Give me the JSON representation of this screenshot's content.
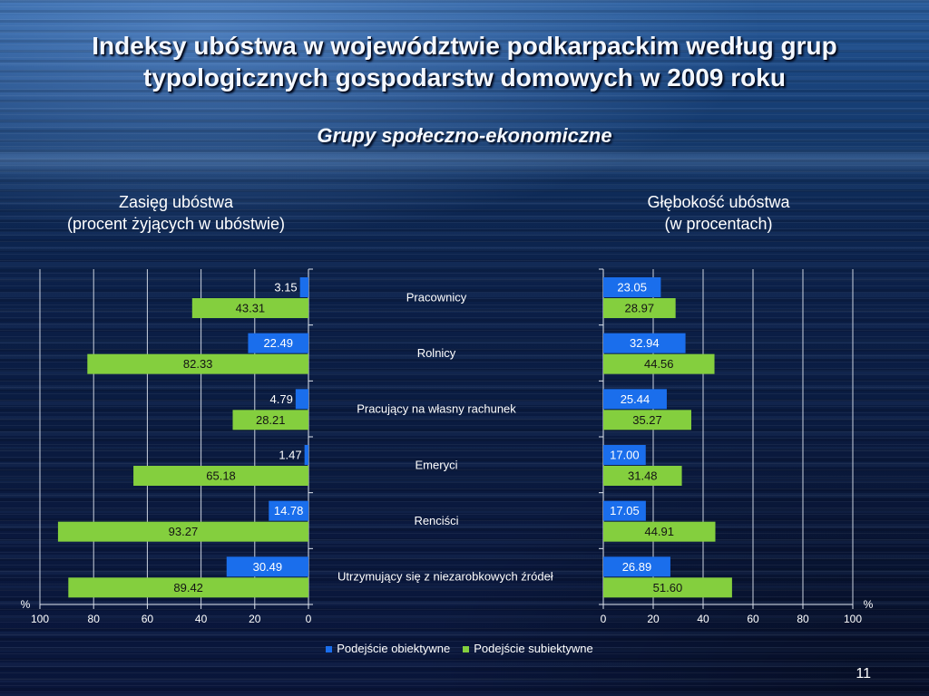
{
  "slide": {
    "title_line1": "Indeksy ubóstwa w województwie podkarpackim według grup",
    "title_line2": "typologicznych gospodarstw domowych w 2009 roku",
    "subtitle": "Grupy społeczno-ekonomiczne",
    "page_number": "11"
  },
  "colors": {
    "objective": "#1a6eec",
    "subjective": "#84cf3e"
  },
  "chart_data": [
    {
      "type": "bar",
      "orientation": "horizontal",
      "x_axis_direction": "reversed",
      "title": "Zasięg ubóstwa",
      "subtitle": "(procent żyjących w ubóstwie)",
      "unit": "%",
      "xlim": [
        0,
        100
      ],
      "x_ticks": [
        100,
        80,
        60,
        40,
        20,
        0
      ],
      "grid": true,
      "legend_position": "bottom",
      "categories": [
        "Pracownicy",
        "Rolnicy",
        "Pracujący na własny rachunek",
        "Emeryci",
        "Renciści",
        "Utrzymujący się z niezarobkowych źródeł"
      ],
      "series": [
        {
          "name": "Podejście obiektywne",
          "values": [
            3.15,
            22.49,
            4.79,
            1.47,
            14.78,
            30.49
          ],
          "labels": [
            "3.15",
            "22.49",
            "4.79",
            "1.47",
            "14.78",
            "30.49"
          ]
        },
        {
          "name": "Podejście subiektywne",
          "values": [
            43.31,
            82.33,
            28.21,
            65.18,
            93.27,
            89.42
          ],
          "labels": [
            "43.31",
            "82.33",
            "28.21",
            "65.18",
            "93.27",
            "89.42"
          ]
        }
      ]
    },
    {
      "type": "bar",
      "orientation": "horizontal",
      "x_axis_direction": "normal",
      "title": "Głębokość ubóstwa",
      "subtitle": "(w procentach)",
      "unit": "%",
      "xlim": [
        0,
        100
      ],
      "x_ticks": [
        0,
        20,
        40,
        60,
        80,
        100
      ],
      "grid": true,
      "legend_position": "bottom",
      "categories": [
        "Pracownicy",
        "Rolnicy",
        "Pracujący na własny rachunek",
        "Emeryci",
        "Renciści",
        "Utrzymujący się z niezarobkowych źródeł"
      ],
      "series": [
        {
          "name": "Podejście obiektywne",
          "values": [
            23.05,
            32.94,
            25.44,
            17.0,
            17.05,
            26.89
          ],
          "labels": [
            "23.05",
            "32.94",
            "25.44",
            "17.00",
            "17.05",
            "26.89"
          ]
        },
        {
          "name": "Podejście subiektywne",
          "values": [
            28.97,
            44.56,
            35.27,
            31.48,
            44.91,
            51.6
          ],
          "labels": [
            "28.97",
            "44.56",
            "35.27",
            "31.48",
            "44.91",
            "51.60"
          ]
        }
      ]
    }
  ]
}
